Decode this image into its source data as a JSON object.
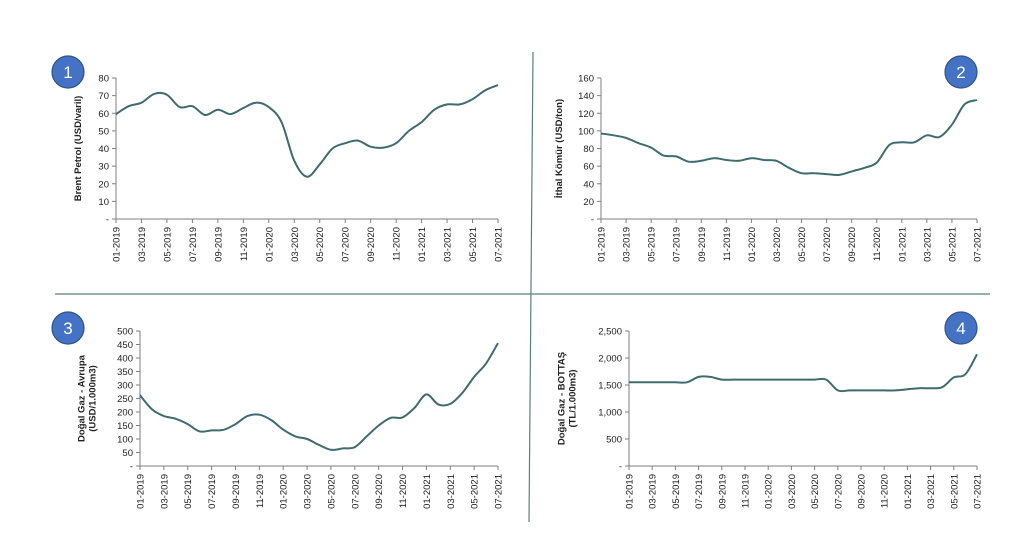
{
  "chart_data": [
    {
      "type": "line",
      "badge": "1",
      "ylabel": [
        "Brent Petrol (USD/varil)"
      ],
      "ylim": [
        0,
        80
      ],
      "y_ticks": [
        "-",
        "10",
        "20",
        "30",
        "40",
        "50",
        "60",
        "70",
        "80"
      ],
      "x_ticks": [
        "01-2019",
        "03-2019",
        "05-2019",
        "07-2019",
        "09-2019",
        "11-2019",
        "01-2020",
        "03-2020",
        "05-2020",
        "07-2020",
        "09-2020",
        "11-2020",
        "01-2021",
        "03-2021",
        "05-2021",
        "07-2021"
      ],
      "x": [
        "01-2019",
        "02-2019",
        "03-2019",
        "04-2019",
        "05-2019",
        "06-2019",
        "07-2019",
        "08-2019",
        "09-2019",
        "10-2019",
        "11-2019",
        "12-2019",
        "01-2020",
        "02-2020",
        "03-2020",
        "04-2020",
        "05-2020",
        "06-2020",
        "07-2020",
        "08-2020",
        "09-2020",
        "10-2020",
        "11-2020",
        "12-2020",
        "01-2021",
        "02-2021",
        "03-2021",
        "04-2021",
        "05-2021",
        "06-2021",
        "07-2021"
      ],
      "color": "#3E6B6E",
      "series": [
        {
          "values": [
            59.5,
            64,
            66,
            71,
            70.5,
            63.5,
            64,
            59,
            62,
            59.5,
            63,
            66,
            63.5,
            55,
            33,
            24,
            31,
            40,
            43,
            44.5,
            41,
            40.5,
            43,
            50,
            55,
            62,
            65,
            65,
            68,
            73,
            76
          ]
        }
      ]
    },
    {
      "type": "line",
      "badge": "2",
      "ylabel": [
        "İthal Kömür (USD/ton)"
      ],
      "ylim": [
        0,
        160
      ],
      "y_ticks": [
        "-",
        "20",
        "40",
        "60",
        "80",
        "100",
        "120",
        "140",
        "160"
      ],
      "x_ticks": [
        "01-2019",
        "03-2019",
        "05-2019",
        "07-2019",
        "09-2019",
        "11-2019",
        "01-2020",
        "03-2020",
        "05-2020",
        "07-2020",
        "09-2020",
        "11-2020",
        "01-2021",
        "03-2021",
        "05-2021",
        "07-2021"
      ],
      "x": [
        "01-2019",
        "02-2019",
        "03-2019",
        "04-2019",
        "05-2019",
        "06-2019",
        "07-2019",
        "08-2019",
        "09-2019",
        "10-2019",
        "11-2019",
        "12-2019",
        "01-2020",
        "02-2020",
        "03-2020",
        "04-2020",
        "05-2020",
        "06-2020",
        "07-2020",
        "08-2020",
        "09-2020",
        "10-2020",
        "11-2020",
        "12-2020",
        "01-2021",
        "02-2021",
        "03-2021",
        "04-2021",
        "05-2021",
        "06-2021",
        "07-2021"
      ],
      "color": "#3E6B6E",
      "series": [
        {
          "values": [
            97,
            95,
            92,
            86,
            81,
            72,
            71,
            65,
            66,
            69,
            67,
            66,
            69,
            67,
            66,
            58,
            52,
            52,
            51,
            50,
            54,
            58,
            64,
            84,
            87,
            87,
            95,
            93,
            107,
            130,
            135
          ]
        }
      ]
    },
    {
      "type": "line",
      "badge": "3",
      "ylabel": [
        "Doğal Gaz - Avrupa",
        "(USD/1.000m3)"
      ],
      "ylim": [
        0,
        500
      ],
      "y_ticks": [
        "-",
        "50",
        "100",
        "150",
        "200",
        "250",
        "300",
        "350",
        "400",
        "450",
        "500"
      ],
      "x_ticks": [
        "01-2019",
        "03-2019",
        "05-2019",
        "07-2019",
        "09-2019",
        "11-2019",
        "01-2020",
        "03-2020",
        "05-2020",
        "07-2020",
        "09-2020",
        "11-2020",
        "01-2021",
        "03-2021",
        "05-2021",
        "07-2021"
      ],
      "x": [
        "01-2019",
        "02-2019",
        "03-2019",
        "04-2019",
        "05-2019",
        "06-2019",
        "07-2019",
        "08-2019",
        "09-2019",
        "10-2019",
        "11-2019",
        "12-2019",
        "01-2020",
        "02-2020",
        "03-2020",
        "04-2020",
        "05-2020",
        "06-2020",
        "07-2020",
        "08-2020",
        "09-2020",
        "10-2020",
        "11-2020",
        "12-2020",
        "01-2021",
        "02-2021",
        "03-2021",
        "04-2021",
        "05-2021",
        "06-2021",
        "07-2021"
      ],
      "color": "#3E6B6E",
      "series": [
        {
          "values": [
            262,
            210,
            185,
            175,
            155,
            128,
            132,
            134,
            155,
            185,
            190,
            170,
            135,
            110,
            100,
            78,
            60,
            65,
            70,
            110,
            150,
            178,
            180,
            215,
            265,
            228,
            230,
            270,
            330,
            380,
            455
          ]
        }
      ]
    },
    {
      "type": "line",
      "badge": "4",
      "ylabel": [
        "Doğal Gaz - BOTTAŞ",
        "(TL/1.000m3)"
      ],
      "ylim": [
        0,
        2500
      ],
      "y_ticks": [
        "-",
        "500",
        "1,000",
        "1,500",
        "2,000",
        "2,500"
      ],
      "x_ticks": [
        "01-2019",
        "03-2019",
        "05-2019",
        "07-2019",
        "09-2019",
        "11-2019",
        "01-2020",
        "03-2020",
        "05-2020",
        "07-2020",
        "09-2020",
        "11-2020",
        "01-2021",
        "03-2021",
        "05-2021",
        "07-2021"
      ],
      "x": [
        "01-2019",
        "02-2019",
        "03-2019",
        "04-2019",
        "05-2019",
        "06-2019",
        "07-2019",
        "08-2019",
        "09-2019",
        "10-2019",
        "11-2019",
        "12-2019",
        "01-2020",
        "02-2020",
        "03-2020",
        "04-2020",
        "05-2020",
        "06-2020",
        "07-2020",
        "08-2020",
        "09-2020",
        "10-2020",
        "11-2020",
        "12-2020",
        "01-2021",
        "02-2021",
        "03-2021",
        "04-2021",
        "05-2021",
        "06-2021",
        "07-2021"
      ],
      "color": "#3E6B6E",
      "series": [
        {
          "values": [
            1550,
            1550,
            1550,
            1550,
            1550,
            1550,
            1650,
            1650,
            1600,
            1600,
            1600,
            1600,
            1600,
            1600,
            1600,
            1600,
            1600,
            1600,
            1400,
            1400,
            1400,
            1400,
            1400,
            1400,
            1420,
            1440,
            1440,
            1460,
            1640,
            1700,
            2070
          ]
        }
      ]
    }
  ],
  "style": {
    "badge_fill": "#4472C4",
    "badge_stroke": "#2F528F",
    "divider_color": "#5B7F80",
    "axis_color": "#7F7F7F"
  }
}
